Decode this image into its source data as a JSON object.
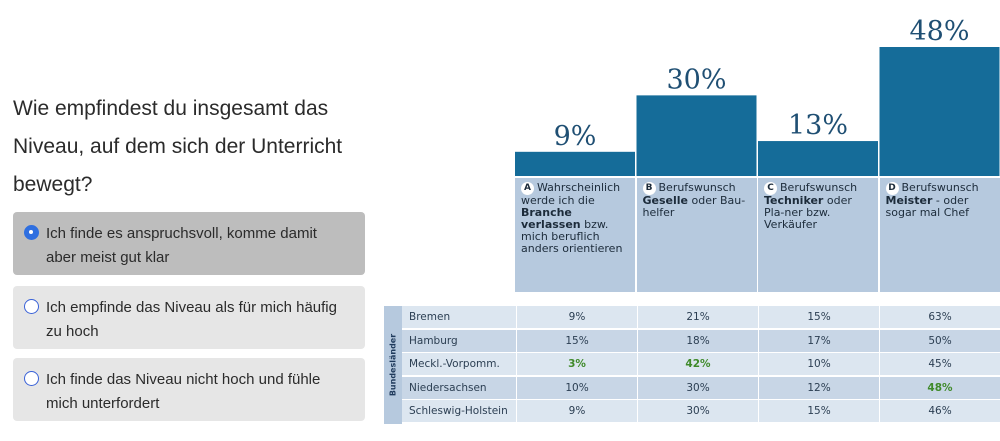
{
  "survey": {
    "question": "Wie empfindest du insgesamt das Niveau, auf dem sich der Unterricht bewegt?",
    "options": [
      {
        "label": "Ich finde es anspruchsvoll, komme damit aber meist gut klar",
        "selected": true
      },
      {
        "label": "Ich empfinde das Niveau als für mich häufig zu hoch",
        "selected": false
      },
      {
        "label": "Ich finde das Niveau nicht hoch und fühle mich unterfordert",
        "selected": false
      }
    ]
  },
  "colors": {
    "bar": "#156c99",
    "category_bg": "#b6c9de",
    "row_light": "#dce6f0",
    "row_dark": "#c8d6e6",
    "highlight": "#3f8a2a",
    "accent": "#2f6fe0"
  },
  "chart_data": {
    "type": "bar",
    "categories": [
      "A",
      "B",
      "C",
      "D"
    ],
    "values": [
      9,
      30,
      13,
      48
    ],
    "value_labels": [
      "9%",
      "30%",
      "13%",
      "48%"
    ],
    "ylim": [
      0,
      48
    ],
    "category_descriptions": [
      {
        "letter": "A",
        "pre": "Wahrscheinlich werde ich die ",
        "bold": "Branche verlassen",
        "post": " bzw. mich beruflich anders orientieren"
      },
      {
        "letter": "B",
        "pre": "Berufswunsch ",
        "bold": "Geselle",
        "post": " oder Bau-helfer"
      },
      {
        "letter": "C",
        "pre": "Berufswunsch ",
        "bold": "Techniker",
        "post": " oder Pla-ner bzw. Verkäufer"
      },
      {
        "letter": "D",
        "pre": "Berufswunsch ",
        "bold": "Meister",
        "post": " - oder sogar mal Chef"
      }
    ],
    "table": {
      "side_label": "Bundesländer",
      "rows": [
        {
          "state": "Bremen",
          "values": [
            "9%",
            "21%",
            "15%",
            "63%"
          ]
        },
        {
          "state": "Hamburg",
          "values": [
            "15%",
            "18%",
            "17%",
            "50%"
          ]
        },
        {
          "state": "Meckl.-Vorpomm.",
          "values": [
            "3%",
            "42%",
            "10%",
            "45%"
          ]
        },
        {
          "state": "Niedersachsen",
          "values": [
            "10%",
            "30%",
            "12%",
            "48%"
          ]
        },
        {
          "state": "Schleswig-Holstein",
          "values": [
            "9%",
            "30%",
            "15%",
            "46%"
          ]
        }
      ]
    }
  }
}
